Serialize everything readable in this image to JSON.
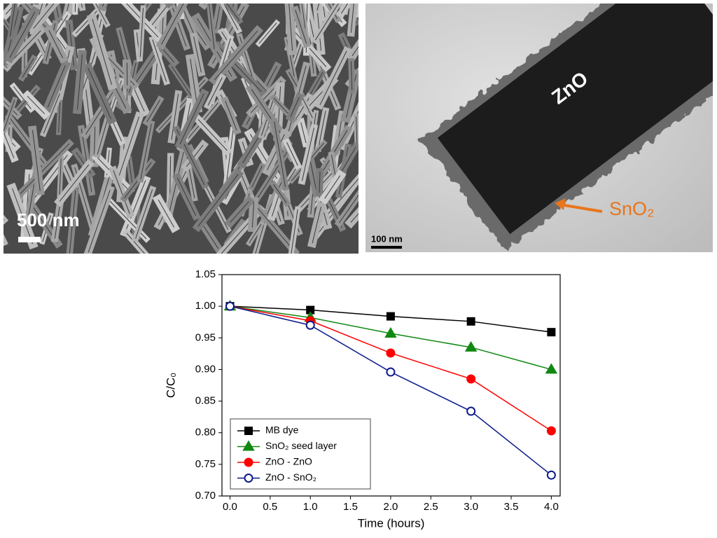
{
  "panels": {
    "sem": {
      "scale_label": "500 nm"
    },
    "tem": {
      "rod_label": "ZnO",
      "shell_label": "SnO₂",
      "scale_label": "100 nm"
    }
  },
  "chart_data": {
    "type": "line",
    "xlabel": "Time (hours)",
    "ylabel": "C/C₀",
    "x": [
      0,
      1,
      2,
      3,
      4
    ],
    "series": [
      {
        "name": "MB dye",
        "color": "#000000",
        "marker": "square",
        "filled": true,
        "values": [
          1.0,
          0.994,
          0.984,
          0.976,
          0.959
        ]
      },
      {
        "name": "SnO₂ seed layer",
        "color": "#118811",
        "marker": "triangle",
        "filled": true,
        "values": [
          1.0,
          0.982,
          0.957,
          0.935,
          0.9
        ]
      },
      {
        "name": "ZnO - ZnO",
        "color": "#ff0000",
        "marker": "circle",
        "filled": true,
        "values": [
          1.0,
          0.977,
          0.926,
          0.885,
          0.803
        ]
      },
      {
        "name": "ZnO - SnO₂",
        "color": "#0a1a8a",
        "marker": "circle",
        "filled": false,
        "values": [
          1.0,
          0.97,
          0.896,
          0.834,
          0.733
        ]
      }
    ],
    "xlim": [
      -0.1,
      4.11
    ],
    "ylim": [
      0.7,
      1.05
    ],
    "xticks": [
      {
        "value": 0,
        "label": "0.0"
      },
      {
        "value": 0.5,
        "label": "0.5"
      },
      {
        "value": 1,
        "label": "1.0"
      },
      {
        "value": 1.5,
        "label": "1.5"
      },
      {
        "value": 2,
        "label": "2.0"
      },
      {
        "value": 2.5,
        "label": "2.5"
      },
      {
        "value": 3,
        "label": "3.0"
      },
      {
        "value": 3.5,
        "label": "3.5"
      },
      {
        "value": 4,
        "label": "4.0"
      }
    ],
    "yticks": [
      {
        "value": 0.7,
        "label": "0.70"
      },
      {
        "value": 0.75,
        "label": "0.75"
      },
      {
        "value": 0.8,
        "label": "0.80"
      },
      {
        "value": 0.85,
        "label": "0.85"
      },
      {
        "value": 0.9,
        "label": "0.90"
      },
      {
        "value": 0.95,
        "label": "0.95"
      },
      {
        "value": 1.0,
        "label": "1.00"
      },
      {
        "value": 1.05,
        "label": "1.05"
      }
    ],
    "legend": "lower left"
  }
}
